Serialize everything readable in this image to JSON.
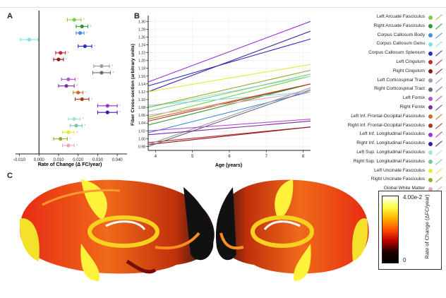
{
  "panels": {
    "a": "A",
    "b": "B",
    "c": "C"
  },
  "tracts": [
    {
      "name": "Left Arcuate Fasciculus",
      "color": "#7ccf3c",
      "rate": 0.018,
      "err": 0.0035,
      "b0": 1.055,
      "b1": 1.16
    },
    {
      "name": "Right Arcuate Fasciculus",
      "color": "#2e9a2e",
      "rate": 0.022,
      "err": 0.003,
      "b0": 1.035,
      "b1": 1.14
    },
    {
      "name": "Corpus Callosum Body",
      "color": "#3d8fe0",
      "rate": 0.021,
      "err": 0.002,
      "b0": 1.015,
      "b1": 1.12
    },
    {
      "name": "Corpus Callosum Genu",
      "color": "#7fe0e8",
      "rate": -0.005,
      "err": 0.0045,
      "b0": 1.085,
      "b1": 1.12
    },
    {
      "name": "Corpus Callosum Splenium",
      "color": "#2a2fc0",
      "rate": 0.0235,
      "err": 0.0035,
      "b0": 1.135,
      "b1": 1.255
    },
    {
      "name": "Left Cingulum",
      "color": "#c0272d",
      "rate": 0.011,
      "err": 0.0025,
      "b0": 0.99,
      "b1": 1.03
    },
    {
      "name": "Right Cingulum",
      "color": "#8a1a1a",
      "rate": 0.01,
      "err": 0.0025,
      "b0": 0.985,
      "b1": 1.03
    },
    {
      "name": "Left Corticospinal Tract",
      "color": "#9a9aa8",
      "rate": 0.032,
      "err": 0.004,
      "b0": 0.985,
      "b1": 1.13
    },
    {
      "name": "Right Corticospinal Tract",
      "color": "#6a6a7a",
      "rate": 0.032,
      "err": 0.0045,
      "b0": 0.98,
      "b1": 1.125
    },
    {
      "name": "Left Fornix",
      "color": "#b84fd6",
      "rate": 0.015,
      "err": 0.0035,
      "b0": 1.02,
      "b1": 1.05
    },
    {
      "name": "Right Fornix",
      "color": "#7a2f9a",
      "rate": 0.014,
      "err": 0.004,
      "b0": 1.01,
      "b1": 1.045
    },
    {
      "name": "Left Inf. Frontal-Occipital Fasciculus",
      "color": "#d06a2a",
      "rate": 0.02,
      "err": 0.0025,
      "b0": 1.05,
      "b1": 1.14
    },
    {
      "name": "Right Inf. Frontal-Occipital Fasciculus",
      "color": "#a33a1a",
      "rate": 0.022,
      "err": 0.0035,
      "b0": 1.045,
      "b1": 1.14
    },
    {
      "name": "Left Inf. Longitudinal Fasciculus",
      "color": "#9c2fd0",
      "rate": 0.035,
      "err": 0.005,
      "b0": 1.145,
      "b1": 1.3
    },
    {
      "name": "Right Inf. Longitudinal Fasciculus",
      "color": "#3a1ca0",
      "rate": 0.035,
      "err": 0.005,
      "b0": 1.12,
      "b1": 1.275
    },
    {
      "name": "Left Sup. Longitudinal Fasciculus",
      "color": "#9ee8c4",
      "rate": 0.018,
      "err": 0.003,
      "b0": 1.08,
      "b1": 1.16
    },
    {
      "name": "Right Sup. Longitudinal Fasciculus",
      "color": "#76c89a",
      "rate": 0.019,
      "err": 0.003,
      "b0": 1.07,
      "b1": 1.165
    },
    {
      "name": "Left Uncinate Fasciculus",
      "color": "#e8e838",
      "rate": 0.015,
      "err": 0.003,
      "b0": 1.12,
      "b1": 1.19
    },
    {
      "name": "Right Uncinate Fasciculus",
      "color": "#9aa82a",
      "rate": 0.011,
      "err": 0.0035,
      "b0": 1.08,
      "b1": 1.175
    },
    {
      "name": "Global White Matter",
      "color": "#e8a6b8",
      "rate": 0.015,
      "err": 0.003,
      "b0": 1.06,
      "b1": 1.12
    }
  ],
  "chart_data": [
    {
      "type": "scatter",
      "panel": "A",
      "xlabel": "Rate of Change (Δ FC/year)",
      "xlim": [
        -0.012,
        0.045
      ],
      "xticks": [
        -0.01,
        0.0,
        0.01,
        0.02,
        0.03,
        0.04
      ],
      "xtick_labels": [
        "-0.010",
        "0.000",
        "0.010",
        "0.020",
        "0.030",
        "0.040"
      ],
      "significance_marker": "*",
      "note": "point estimates with error bars, one per tract (see tracts[].rate, tracts[].err)"
    },
    {
      "type": "line",
      "panel": "B",
      "xlabel": "Age (years)",
      "ylabel": "Fiber Cross-section (arbitrary units)",
      "xlim": [
        3.8,
        8.2
      ],
      "ylim": [
        0.97,
        1.315
      ],
      "xticks": [
        4,
        5,
        6,
        7,
        8
      ],
      "xtick_labels": [
        "4",
        "5",
        "6",
        "7",
        "8"
      ],
      "yticks": [
        0.98,
        1.0,
        1.02,
        1.04,
        1.06,
        1.08,
        1.1,
        1.12,
        1.14,
        1.16,
        1.18,
        1.2,
        1.22,
        1.24,
        1.26,
        1.28,
        1.3
      ],
      "ytick_labels": [
        "0.98",
        "1.00",
        "1.02",
        "1.04",
        "1.06",
        "1.08",
        "1.10",
        "1.12",
        "1.14",
        "1.16",
        "1.18",
        "1.20",
        "1.22",
        "1.24",
        "1.26",
        "1.28",
        "1.30"
      ],
      "note": "one fitted line per tract from age 3.8 (tracts[].b0) to 8.2 (tracts[].b1)"
    }
  ],
  "colorbar": {
    "max_label": "4.00e-2",
    "min_label": "0",
    "label": "Rate of Change (ΔFC/year)",
    "colors": [
      "#ffffff",
      "#ffff40",
      "#ffb000",
      "#ff5000",
      "#c00000",
      "#200000",
      "#000000"
    ]
  }
}
